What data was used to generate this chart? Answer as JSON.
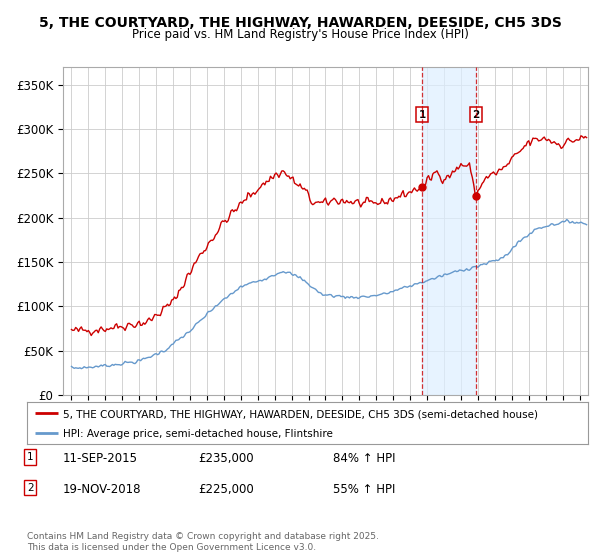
{
  "title": "5, THE COURTYARD, THE HIGHWAY, HAWARDEN, DEESIDE, CH5 3DS",
  "subtitle": "Price paid vs. HM Land Registry's House Price Index (HPI)",
  "legend_line1": "5, THE COURTYARD, THE HIGHWAY, HAWARDEN, DEESIDE, CH5 3DS (semi-detached house)",
  "legend_line2": "HPI: Average price, semi-detached house, Flintshire",
  "footer": "Contains HM Land Registry data © Crown copyright and database right 2025.\nThis data is licensed under the Open Government Licence v3.0.",
  "transaction1_date": "11-SEP-2015",
  "transaction1_price": 235000,
  "transaction1_hpi": "84% ↑ HPI",
  "transaction2_date": "19-NOV-2018",
  "transaction2_price": 225000,
  "transaction2_hpi": "55% ↑ HPI",
  "sale1_x": 2015.7,
  "sale1_y": 235000,
  "sale2_x": 2018.9,
  "sale2_y": 225000,
  "ylim": [
    0,
    370000
  ],
  "xlim_start": 1994.5,
  "xlim_end": 2025.5,
  "yticks": [
    0,
    50000,
    100000,
    150000,
    200000,
    250000,
    300000,
    350000
  ],
  "ytick_labels": [
    "£0",
    "£50K",
    "£100K",
    "£150K",
    "£200K",
    "£250K",
    "£300K",
    "£350K"
  ],
  "xticks": [
    1995,
    1996,
    1997,
    1998,
    1999,
    2000,
    2001,
    2002,
    2003,
    2004,
    2005,
    2006,
    2007,
    2008,
    2009,
    2010,
    2011,
    2012,
    2013,
    2014,
    2015,
    2016,
    2017,
    2018,
    2019,
    2020,
    2021,
    2022,
    2023,
    2024,
    2025
  ],
  "red_color": "#cc0000",
  "blue_color": "#6699cc",
  "shade_color": "#ddeeff",
  "grid_color": "#cccccc",
  "bg_color": "#ffffff"
}
